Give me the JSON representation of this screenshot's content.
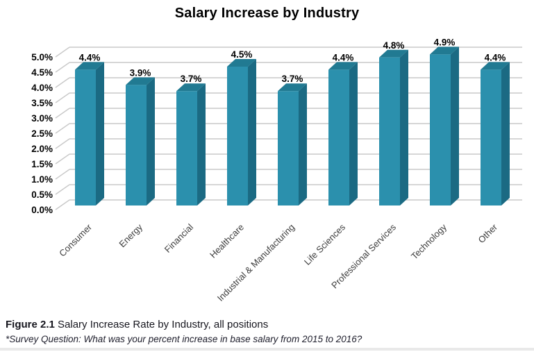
{
  "title": "Salary Increase by Industry",
  "chart_data": {
    "type": "bar",
    "style": "3d-column",
    "title": "Salary Increase by Industry",
    "xlabel": "",
    "ylabel": "",
    "categories": [
      "Consumer",
      "Energy",
      "Financial",
      "Healthcare",
      "Industrial & Manufacturing",
      "Life Sciences",
      "Professional Services",
      "Technology",
      "Other"
    ],
    "values": [
      4.4,
      3.9,
      3.7,
      4.5,
      3.7,
      4.4,
      4.8,
      4.9,
      4.4
    ],
    "data_labels": [
      "4.4%",
      "3.9%",
      "3.7%",
      "4.5%",
      "3.7%",
      "4.4%",
      "4.8%",
      "4.9%",
      "4.4%"
    ],
    "ylim": [
      0,
      5
    ],
    "ytick_step": 0.5,
    "ytick_labels": [
      "0.0%",
      "0.5%",
      "1.0%",
      "1.5%",
      "2.0%",
      "2.5%",
      "3.0%",
      "3.5%",
      "4.0%",
      "4.5%",
      "5.0%"
    ],
    "grid": true,
    "legend": false,
    "colors": {
      "bar_front": "#2B90AD",
      "bar_top": "#217A92",
      "bar_side": "#1B6A83",
      "gridline": "#C9C9C9",
      "data_label": "#000000",
      "axis_label": "#000000",
      "category_label": "#3D3D3D"
    }
  },
  "caption": {
    "figure_label": "Figure 2.1",
    "figure_text": " Salary Increase Rate by Industry, all positions",
    "survey_note": "*Survey Question: What was your percent increase in base salary from 2015 to 2016?"
  }
}
